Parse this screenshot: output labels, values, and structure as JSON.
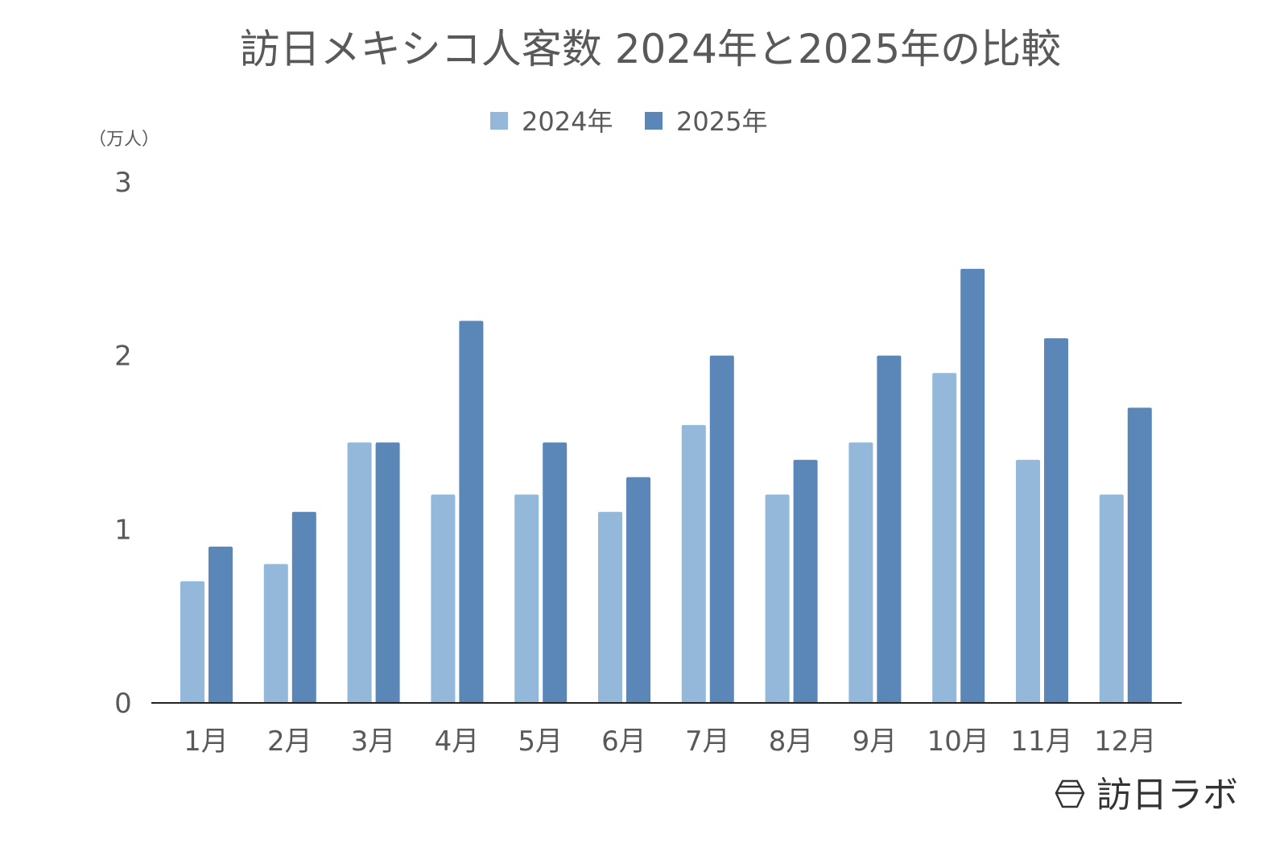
{
  "chart_data": {
    "type": "bar",
    "title": "訪日メキシコ人客数 2024年と2025年の比較",
    "unit_label": "（万人）",
    "categories": [
      "1月",
      "2月",
      "3月",
      "4月",
      "5月",
      "6月",
      "7月",
      "8月",
      "9月",
      "10月",
      "11月",
      "12月"
    ],
    "series": [
      {
        "name": "2024年",
        "color": "#93b8d9",
        "values": [
          0.7,
          0.8,
          1.5,
          1.2,
          1.2,
          1.1,
          1.6,
          1.2,
          1.5,
          1.9,
          1.4,
          1.2
        ]
      },
      {
        "name": "2025年",
        "color": "#5b87b8",
        "values": [
          0.9,
          1.1,
          1.5,
          2.2,
          1.5,
          1.3,
          2.0,
          1.4,
          2.0,
          2.5,
          2.1,
          1.7
        ]
      }
    ],
    "ylim": [
      0,
      3
    ],
    "yticks": [
      "0",
      "1",
      "2",
      "3"
    ],
    "grid": false,
    "legend_position": "top"
  },
  "brand": {
    "name": "訪日ラボ",
    "icon": "hexagon-logo-icon"
  }
}
